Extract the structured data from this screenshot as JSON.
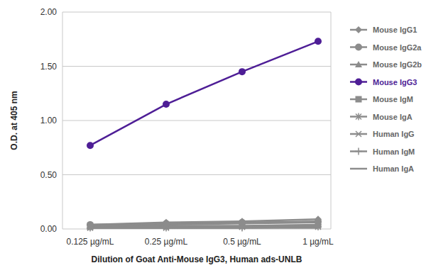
{
  "chart_data": {
    "type": "line",
    "y_label": "O.D. at 405 nm",
    "x_label": "Dilution of Goat Anti-Mouse IgG3, Human ads-UNLB",
    "categories": [
      "0.125 µg/mL",
      "0.25 µg/mL",
      "0.5 µg/mL",
      "1 µg/mL"
    ],
    "ylim": [
      0,
      2
    ],
    "yticks": [
      {
        "value": 0,
        "label": "0.00"
      },
      {
        "value": 0.5,
        "label": "0.50"
      },
      {
        "value": 1,
        "label": "1.00"
      },
      {
        "value": 1.5,
        "label": "1.50"
      },
      {
        "value": 2,
        "label": "2.00"
      }
    ],
    "grid": true,
    "legend": "right",
    "series": [
      {
        "name": "Mouse IgG1",
        "color": "#8c8c8c",
        "marker": "diamond",
        "values": [
          0.04,
          0.06,
          0.07,
          0.09
        ]
      },
      {
        "name": "Mouse IgG2a",
        "color": "#8c8c8c",
        "marker": "circle",
        "values": [
          0.04,
          0.05,
          0.06,
          0.07
        ]
      },
      {
        "name": "Mouse IgG2b",
        "color": "#8c8c8c",
        "marker": "triangle",
        "values": [
          0.03,
          0.04,
          0.05,
          0.06
        ]
      },
      {
        "name": "Mouse IgG3",
        "color": "#4e1e96",
        "marker": "circle",
        "values": [
          0.77,
          1.15,
          1.45,
          1.73
        ]
      },
      {
        "name": "Mouse IgM",
        "color": "#8c8c8c",
        "marker": "square",
        "values": [
          0.02,
          0.03,
          0.03,
          0.04
        ]
      },
      {
        "name": "Mouse IgA",
        "color": "#8c8c8c",
        "marker": "asterisk",
        "values": [
          0.02,
          0.02,
          0.02,
          0.03
        ]
      },
      {
        "name": "Human IgG",
        "color": "#8c8c8c",
        "marker": "x",
        "values": [
          0.01,
          0.01,
          0.02,
          0.02
        ]
      },
      {
        "name": "Human IgM",
        "color": "#8c8c8c",
        "marker": "plus",
        "values": [
          0.01,
          0.01,
          0.01,
          0.02
        ]
      },
      {
        "name": "Human IgA",
        "color": "#8c8c8c",
        "marker": "none",
        "values": [
          0.01,
          0.01,
          0.01,
          0.01
        ]
      }
    ]
  }
}
